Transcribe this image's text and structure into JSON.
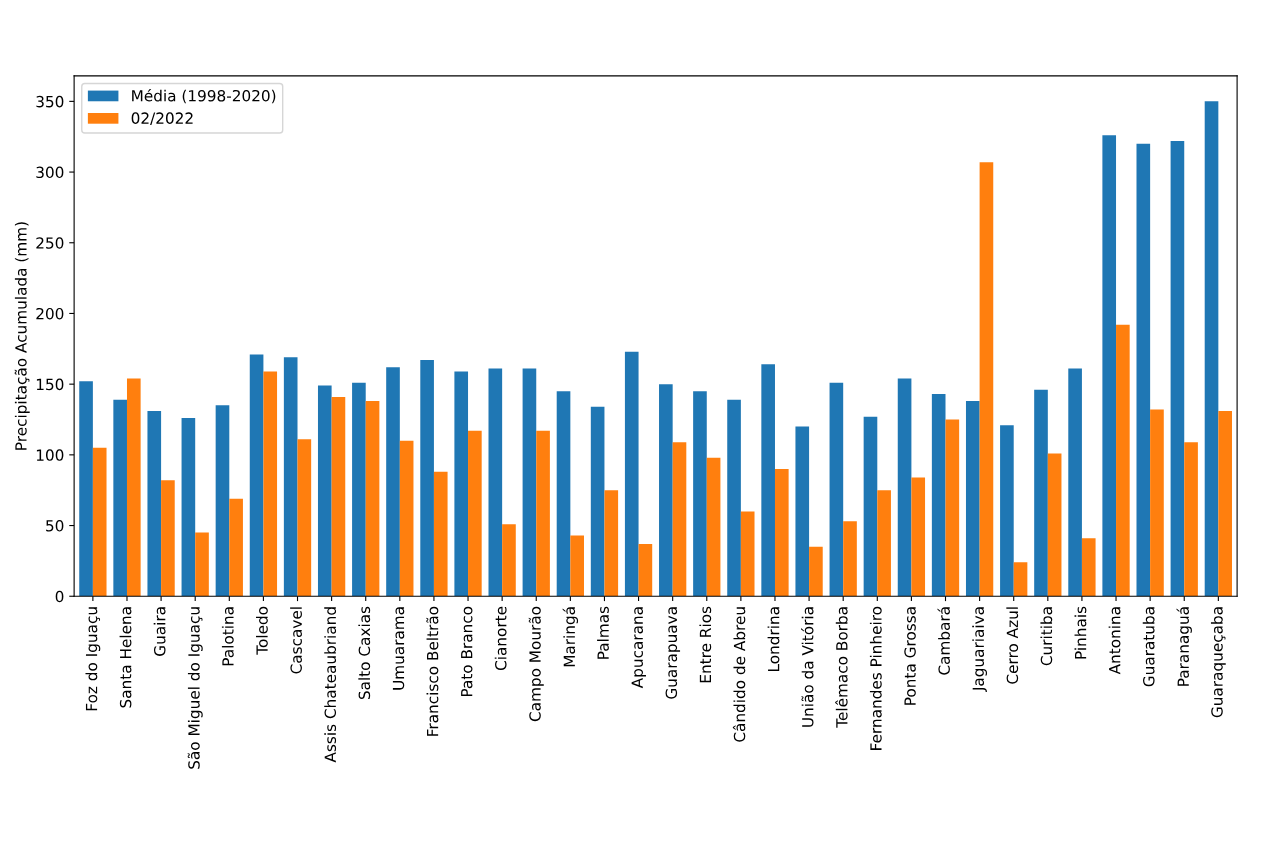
{
  "chart_data": {
    "type": "bar",
    "ylabel": "Precipitação Acumulada (mm)",
    "categories": [
      "Foz do Iguaçu",
      "Santa Helena",
      "Guaira",
      "São Miguel do Iguaçu",
      "Palotina",
      "Toledo",
      "Cascavel",
      "Assis Chateaubriand",
      "Salto Caxias",
      "Umuarama",
      "Francisco Beltrão",
      "Pato Branco",
      "Cianorte",
      "Campo Mourão",
      "Maringá",
      "Palmas",
      "Apucarana",
      "Guarapuava",
      "Entre Rios",
      "Cândido de Abreu",
      "Londrina",
      "União da Vitória",
      "Telêmaco Borba",
      "Fernandes Pinheiro",
      "Ponta Grossa",
      "Cambará",
      "Jaguariaiva",
      "Cerro Azul",
      "Curitiba",
      "Pinhais",
      "Antonina",
      "Guaratuba",
      "Paranaguá",
      "Guaraqueçaba"
    ],
    "series": [
      {
        "name": "Média (1998-2020)",
        "color": "#1f77b4",
        "values": [
          152,
          139,
          131,
          126,
          135,
          171,
          169,
          149,
          151,
          162,
          167,
          159,
          161,
          161,
          145,
          134,
          173,
          150,
          145,
          139,
          164,
          120,
          151,
          127,
          154,
          143,
          138,
          121,
          146,
          161,
          326,
          320,
          322,
          350
        ]
      },
      {
        "name": "02/2022",
        "color": "#ff7f0e",
        "values": [
          105,
          154,
          82,
          45,
          69,
          159,
          111,
          141,
          138,
          110,
          88,
          117,
          51,
          117,
          43,
          75,
          37,
          109,
          98,
          60,
          90,
          35,
          53,
          75,
          84,
          125,
          307,
          24,
          101,
          41,
          192,
          132,
          109,
          131
        ]
      }
    ],
    "ylim": [
      0,
      368
    ],
    "yticks": [
      0,
      50,
      100,
      150,
      200,
      250,
      300,
      350
    ],
    "grid": false,
    "legend": "top left"
  }
}
